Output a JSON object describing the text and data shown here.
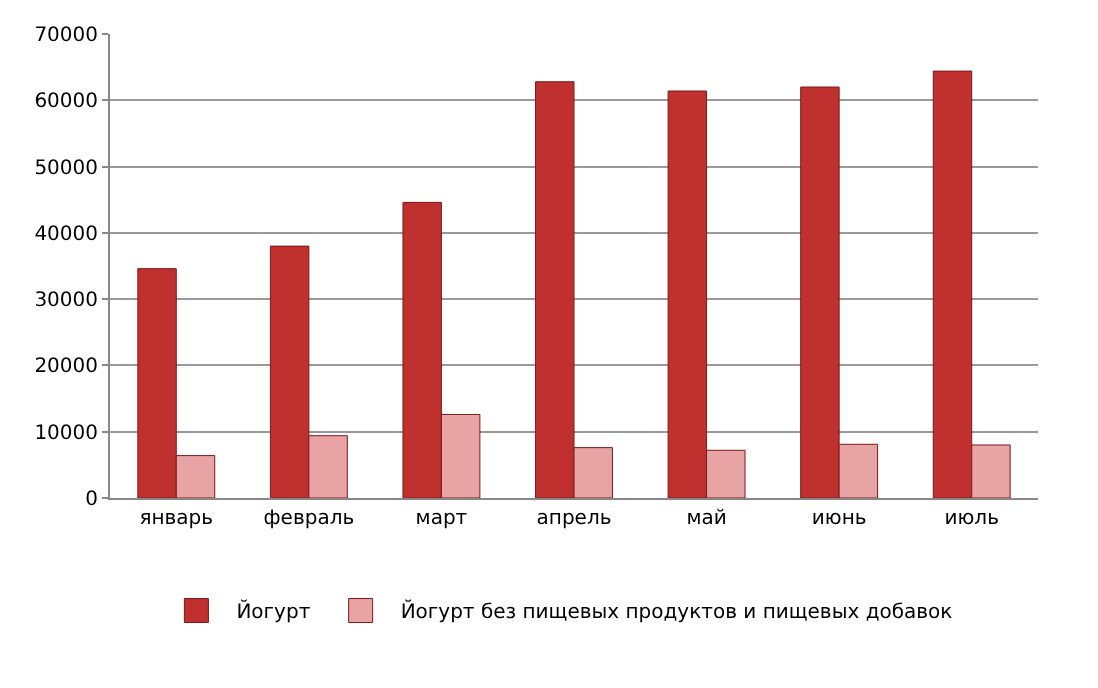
{
  "chart_data": {
    "type": "bar",
    "categories": [
      "январь",
      "февраль",
      "март",
      "апрель",
      "май",
      "июнь",
      "июль"
    ],
    "series": [
      {
        "name": "Йогурт",
        "color": "#c0302e",
        "values": [
          34600,
          38000,
          44600,
          62800,
          61400,
          62000,
          64400
        ]
      },
      {
        "name": "Йогурт без пищевых продуктов и пищевых добавок",
        "color": "#e8a4a4",
        "values": [
          6400,
          9400,
          12600,
          7600,
          7200,
          8100,
          8000
        ]
      }
    ],
    "ylim": [
      0,
      70000
    ],
    "yticks": [
      0,
      10000,
      20000,
      30000,
      40000,
      50000,
      60000,
      70000
    ],
    "grid": "y",
    "legend": "bottom"
  }
}
